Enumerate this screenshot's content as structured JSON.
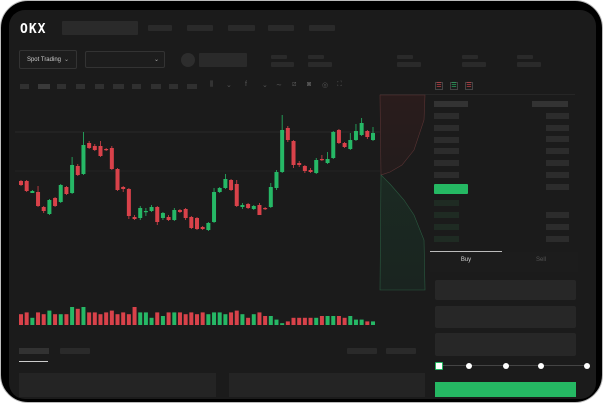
{
  "header": {
    "logo": "OKX",
    "nav_count": 5
  },
  "toolbar": {
    "market_select": "Spot Trading",
    "pair_select": ""
  },
  "order_book": {
    "view_icons": [
      "both-sides-icon",
      "bids-only-icon",
      "asks-only-icon"
    ]
  },
  "trade_panel": {
    "tabs": [
      {
        "label": "Buy",
        "active": true
      },
      {
        "label": "Sell",
        "active": false
      }
    ],
    "slider_percent": 0,
    "slider_marks": [
      0,
      25,
      50,
      75,
      100
    ],
    "submit_color": "#25b863"
  },
  "colors": {
    "up": "#26b866",
    "down": "#d9424a",
    "background": "#1b1b1b"
  },
  "chart_data": {
    "type": "candlestick",
    "candles": [
      [
        69,
        65,
        70,
        64
      ],
      [
        69,
        59,
        70,
        58
      ],
      [
        57,
        59,
        60,
        57
      ],
      [
        58,
        44,
        64,
        43
      ],
      [
        43,
        39,
        44,
        37
      ],
      [
        36,
        50,
        51,
        35
      ],
      [
        52,
        44,
        53,
        43
      ],
      [
        48,
        65,
        66,
        47
      ],
      [
        63,
        56,
        64,
        55
      ],
      [
        57,
        85,
        93,
        56
      ],
      [
        84,
        75,
        86,
        74
      ],
      [
        76,
        105,
        118,
        75
      ],
      [
        107,
        102,
        109,
        101
      ],
      [
        104,
        100,
        106,
        99
      ],
      [
        104,
        94,
        109,
        93
      ],
      [
        101,
        100,
        102,
        99
      ],
      [
        102,
        81,
        104,
        80
      ],
      [
        81,
        60,
        82,
        59
      ],
      [
        63,
        61,
        64,
        58
      ],
      [
        61,
        34,
        62,
        31
      ],
      [
        33,
        31,
        35,
        30
      ],
      [
        32,
        42,
        44,
        30
      ],
      [
        38,
        39,
        42,
        34
      ],
      [
        39,
        43,
        45,
        38
      ],
      [
        43,
        28,
        44,
        25
      ],
      [
        32,
        37,
        38,
        30
      ],
      [
        33,
        30,
        35,
        29
      ],
      [
        30,
        40,
        42,
        29
      ],
      [
        40,
        38,
        41,
        37
      ],
      [
        41,
        32,
        42,
        30
      ],
      [
        33,
        22,
        34,
        21
      ],
      [
        32,
        21,
        33,
        20
      ],
      [
        23,
        21,
        24,
        20
      ],
      [
        20,
        27,
        28,
        19
      ],
      [
        28,
        58,
        62,
        27
      ],
      [
        58,
        62,
        63,
        57
      ],
      [
        62,
        71,
        76,
        61
      ],
      [
        70,
        60,
        71,
        59
      ],
      [
        66,
        44,
        70,
        43
      ],
      [
        43,
        45,
        47,
        41
      ],
      [
        46,
        42,
        47,
        41
      ],
      [
        41,
        44,
        45,
        40
      ],
      [
        45,
        35,
        47,
        35
      ],
      [
        42,
        41,
        43,
        40
      ],
      [
        43,
        63,
        67,
        42
      ],
      [
        62,
        78,
        80,
        60
      ],
      [
        78,
        120,
        135,
        77
      ],
      [
        122,
        110,
        124,
        108
      ],
      [
        109,
        85,
        110,
        82
      ],
      [
        87,
        85,
        89,
        83
      ],
      [
        84,
        79,
        85,
        77
      ],
      [
        80,
        78,
        82,
        77
      ],
      [
        77,
        90,
        92,
        76
      ],
      [
        91,
        90,
        95,
        89
      ],
      [
        87,
        91,
        98,
        86
      ],
      [
        92,
        118,
        119,
        91
      ],
      [
        120,
        107,
        121,
        106
      ],
      [
        107,
        103,
        108,
        102
      ],
      [
        101,
        110,
        117,
        100
      ],
      [
        110,
        119,
        126,
        109
      ],
      [
        115,
        127,
        132,
        114
      ],
      [
        119,
        113,
        120,
        111
      ],
      [
        110,
        117,
        123,
        109
      ]
    ],
    "volumes": [
      6,
      7,
      4,
      7,
      6,
      8,
      6,
      6,
      6,
      10,
      9,
      10,
      7,
      7,
      6,
      7,
      8,
      6,
      7,
      6,
      10,
      7,
      7,
      4,
      7,
      5,
      7,
      7,
      7,
      6,
      7,
      6,
      7,
      6,
      7,
      7,
      6,
      7,
      8,
      6,
      4,
      6,
      7,
      5,
      5,
      3,
      1,
      2,
      4,
      4,
      4,
      4,
      4,
      5,
      5,
      5,
      5,
      4,
      5,
      3,
      3,
      2,
      2
    ]
  }
}
